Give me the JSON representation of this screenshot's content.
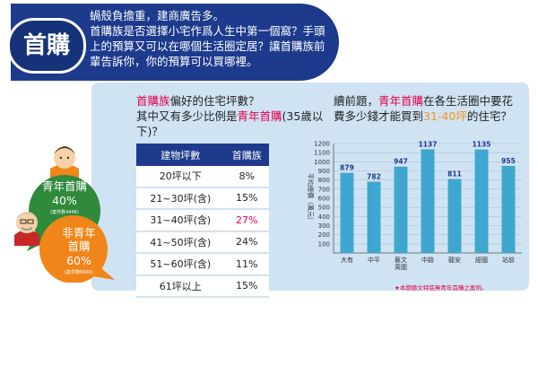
{
  "header": {
    "tag": "首購",
    "line1": "蝸殼負擔重，建商廣告多。",
    "line2": "首購族是否選擇小宅作爲人生中第一個窩？手頭上的預算又可以在哪個生活圈定居？讓首購族前輩告訴你，你的預算可以買哪裡。"
  },
  "left_question": {
    "part1_hl": "首購族",
    "part1": "偏好的住宅坪數？",
    "part2": "其中又有多少比例是",
    "part2_hl": "青年首購",
    "part3": "(35歲以下)？"
  },
  "table": {
    "headers": [
      "建物坪數",
      "首購族"
    ],
    "rows": [
      {
        "size": "20坪以下",
        "pct": "8%"
      },
      {
        "size": "21~30坪(含)",
        "pct": "15%"
      },
      {
        "size": "31~40坪(含)",
        "pct": "27%"
      },
      {
        "size": "41~50坪(含)",
        "pct": "24%"
      },
      {
        "size": "51~60坪(含)",
        "pct": "11%"
      },
      {
        "size": "61坪以上",
        "pct": "15%"
      }
    ]
  },
  "bubbles": {
    "young": {
      "label": "青年首購",
      "pct": "40%",
      "count": "(案件數4446)"
    },
    "nonyoung": {
      "label": "非青年首購",
      "pct": "60%",
      "count": "(案件數6666)"
    }
  },
  "right_question": {
    "p1": "續前題，",
    "p1_hl": "青年首購",
    "p2": "在各生活圈中要花費多少錢才能買到",
    "p2_hl": "31-40坪",
    "p3": "的住宅？"
  },
  "note": "★本期藝文特區無青年首購之案例。",
  "chart_data": {
    "type": "bar",
    "categories": [
      "大有",
      "中平",
      "藝文\n周圍",
      "中路",
      "龍安",
      "經國",
      "站前"
    ],
    "values": [
      879,
      782,
      947,
      1137,
      811,
      1135,
      955
    ],
    "ylabel": "平均總價（萬元）",
    "ylim": [
      0,
      1200
    ],
    "yticks": [
      100,
      200,
      300,
      400,
      500,
      600,
      700,
      800,
      900,
      1000,
      1100,
      1200
    ],
    "grid": true,
    "bar_color": "#3fa7cf",
    "label_color": "#1d3a8c"
  },
  "colors": {
    "navy": "#1d3a8c",
    "panel": "#cfe3f3",
    "pink": "#e5004f",
    "green": "#2f8a3c",
    "orange": "#f08519"
  }
}
